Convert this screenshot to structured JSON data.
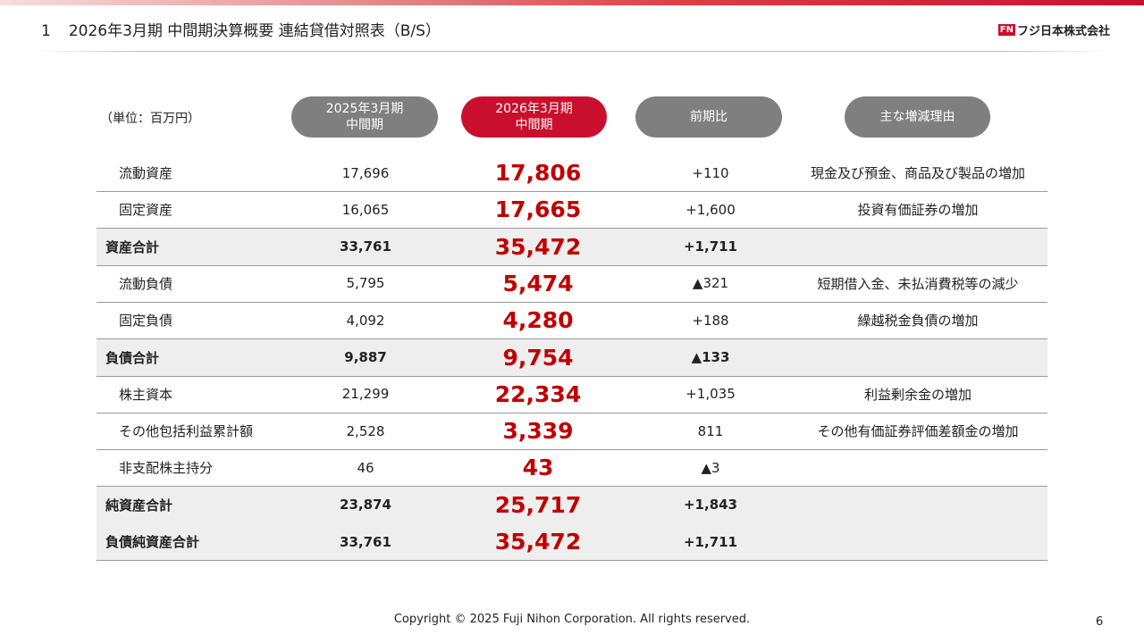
{
  "header": {
    "number": "1",
    "title": "2026年3月期 中間期決算概要 連結貸借対照表（B/S）",
    "logo_mark": "FN",
    "logo": "フジ日本株式会社"
  },
  "unit": "（単位：百万円）",
  "table": {
    "columns": [
      {
        "lines": [
          "2025年3月期",
          "中間期"
        ]
      },
      {
        "lines": [
          "2026年3月期",
          "中間期"
        ]
      },
      {
        "lines": [
          "前期比"
        ]
      },
      {
        "lines": [
          "主な増減理由"
        ]
      }
    ],
    "rows": [
      {
        "label": "流動資産",
        "prev": "17,696",
        "curr": "17,806",
        "diff": "+110",
        "reason": "現金及び預金、商品及び製品の増加"
      },
      {
        "label": "固定資産",
        "prev": "16,065",
        "curr": "17,665",
        "diff": "+1,600",
        "reason": "投資有価証券の増加"
      },
      {
        "label": "資産合計",
        "prev": "33,761",
        "curr": "35,472",
        "diff": "+1,711",
        "subtotal": true
      },
      {
        "label": "流動負債",
        "prev": "5,795",
        "curr": "5,474",
        "diff": "▲321",
        "reason": "短期借入金、未払消費税等の減少"
      },
      {
        "label": "固定負債",
        "prev": "4,092",
        "curr": "4,280",
        "diff": "+188",
        "reason": "繰越税金負債の増加"
      },
      {
        "label": "負債合計",
        "prev": "9,887",
        "curr": "9,754",
        "diff": "▲133",
        "subtotal": true
      },
      {
        "label": "株主資本",
        "prev": "21,299",
        "curr": "22,334",
        "diff": "+1,035",
        "reason": "利益剰余金の増加"
      },
      {
        "label": "その他包括利益累計額",
        "prev": "2,528",
        "curr": "3,339",
        "diff": "811",
        "reason": "その他有価証券評価差額金の増加"
      },
      {
        "label": "非支配株主持分",
        "prev": "46",
        "curr": "43",
        "diff": "▲3"
      },
      {
        "label": "純資産合計",
        "prev": "23,874",
        "curr": "25,717",
        "diff": "+1,843",
        "subtotal": true
      },
      {
        "label": "負債純資産合計",
        "prev": "33,761",
        "curr": "35,472",
        "diff": "+1,711",
        "subtotal": true
      }
    ]
  },
  "footer": {
    "copyright": "Copyright © 2025 Fuji Nihon Corporation.  All rights reserved.",
    "page": "6"
  }
}
